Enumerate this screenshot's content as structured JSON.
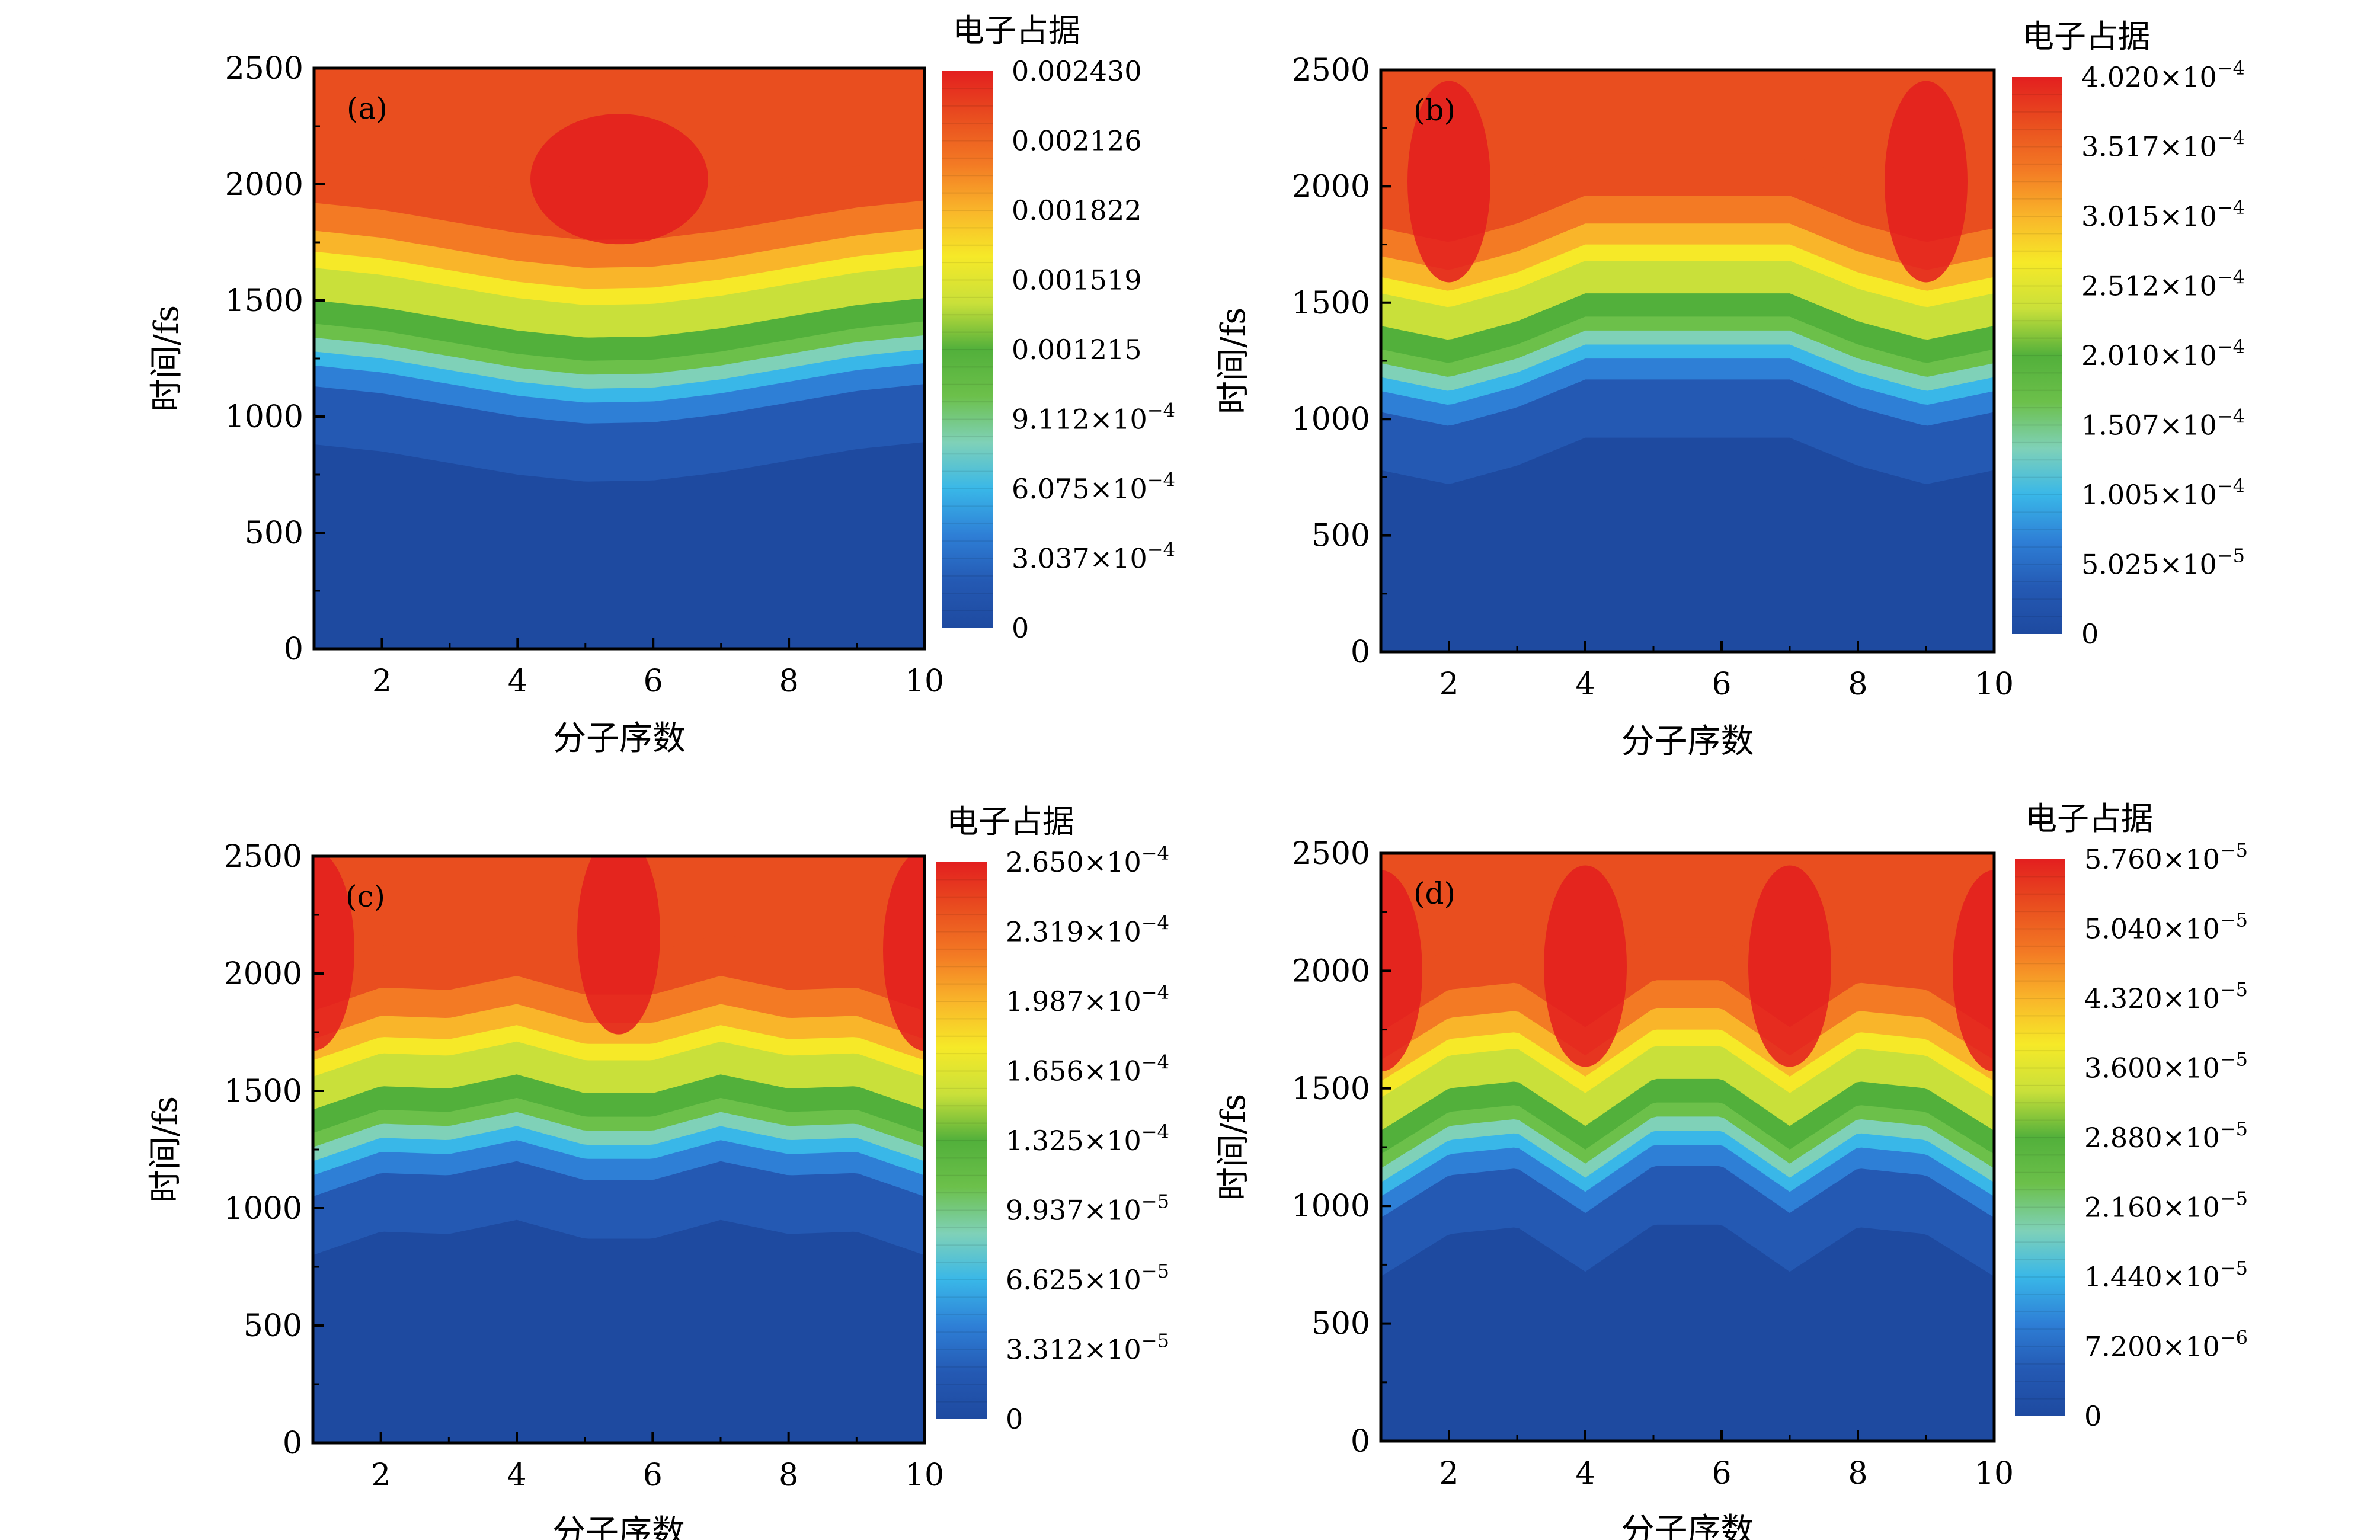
{
  "figure": {
    "description_free": true
  },
  "colors": {
    "stops": [
      "#1e4aa0",
      "#2459b3",
      "#2e7fd6",
      "#39b7e8",
      "#7fd1b8",
      "#6cc04a",
      "#52b03b",
      "#c9e03a",
      "#f6e928",
      "#f9b52a",
      "#f37a24",
      "#e94e1f",
      "#e31f1f"
    ]
  },
  "chart_data": [
    {
      "type": "heatmap",
      "panel_label": "(a)",
      "xlabel": "分子序数",
      "ylabel": "时间/fs",
      "xlim": [
        1,
        10
      ],
      "ylim": [
        0,
        2500
      ],
      "x_ticks": [
        "2",
        "4",
        "6",
        "8",
        "10"
      ],
      "y_ticks": [
        "0",
        "500",
        "1000",
        "1500",
        "2000",
        "2500"
      ],
      "colorbar_title": "电子占据",
      "colorbar_max": 0.00243,
      "colorbar_labels": [
        {
          "mant": "0.002430",
          "exp": ""
        },
        {
          "mant": "0.002126",
          "exp": ""
        },
        {
          "mant": "0.001822",
          "exp": ""
        },
        {
          "mant": "0.001519",
          "exp": ""
        },
        {
          "mant": "0.001215",
          "exp": ""
        },
        {
          "mant": "9.112×10",
          "exp": "−4"
        },
        {
          "mant": "6.075×10",
          "exp": "−4"
        },
        {
          "mant": "3.037×10",
          "exp": "−4"
        },
        {
          "mant": "0",
          "exp": ""
        }
      ],
      "front_time_fs": [
        1280,
        1250,
        1200,
        1150,
        1120,
        1125,
        1160,
        1210,
        1260,
        1290
      ],
      "peak_molecules": [
        5.5
      ]
    },
    {
      "type": "heatmap",
      "panel_label": "(b)",
      "xlabel": "分子序数",
      "ylabel": "时间/fs",
      "xlim": [
        1,
        10
      ],
      "ylim": [
        0,
        2500
      ],
      "x_ticks": [
        "2",
        "4",
        "6",
        "8",
        "10"
      ],
      "y_ticks": [
        "0",
        "500",
        "1000",
        "1500",
        "2000",
        "2500"
      ],
      "colorbar_title": "电子占据",
      "colorbar_max": 0.000402,
      "colorbar_labels": [
        {
          "mant": "4.020×10",
          "exp": "−4"
        },
        {
          "mant": "3.517×10",
          "exp": "−4"
        },
        {
          "mant": "3.015×10",
          "exp": "−4"
        },
        {
          "mant": "2.512×10",
          "exp": "−4"
        },
        {
          "mant": "2.010×10",
          "exp": "−4"
        },
        {
          "mant": "1.507×10",
          "exp": "−4"
        },
        {
          "mant": "1.005×10",
          "exp": "−4"
        },
        {
          "mant": "5.025×10",
          "exp": "−5"
        },
        {
          "mant": "0",
          "exp": ""
        }
      ],
      "front_time_fs": [
        1180,
        1120,
        1200,
        1320,
        1320,
        1320,
        1320,
        1200,
        1120,
        1180
      ],
      "peak_molecules": [
        2,
        9
      ]
    },
    {
      "type": "heatmap",
      "panel_label": "(c)",
      "xlabel": "分子序数",
      "ylabel": "时间/fs",
      "xlim": [
        1,
        10
      ],
      "ylim": [
        0,
        2500
      ],
      "x_ticks": [
        "2",
        "4",
        "6",
        "8",
        "10"
      ],
      "y_ticks": [
        "0",
        "500",
        "1000",
        "1500",
        "2000",
        "2500"
      ],
      "colorbar_title": "电子占据",
      "colorbar_max": 0.000265,
      "colorbar_labels": [
        {
          "mant": "2.650×10",
          "exp": "−4"
        },
        {
          "mant": "2.319×10",
          "exp": "−4"
        },
        {
          "mant": "1.987×10",
          "exp": "−4"
        },
        {
          "mant": "1.656×10",
          "exp": "−4"
        },
        {
          "mant": "1.325×10",
          "exp": "−4"
        },
        {
          "mant": "9.937×10",
          "exp": "−5"
        },
        {
          "mant": "6.625×10",
          "exp": "−5"
        },
        {
          "mant": "3.312×10",
          "exp": "−5"
        },
        {
          "mant": "0",
          "exp": ""
        }
      ],
      "front_time_fs": [
        1200,
        1300,
        1290,
        1350,
        1270,
        1270,
        1350,
        1290,
        1300,
        1200
      ],
      "peak_molecules": [
        1,
        5.5,
        10
      ]
    },
    {
      "type": "heatmap",
      "panel_label": "(d)",
      "xlabel": "分子序数",
      "ylabel": "时间/fs",
      "xlim": [
        1,
        10
      ],
      "ylim": [
        0,
        2500
      ],
      "x_ticks": [
        "2",
        "4",
        "6",
        "8",
        "10"
      ],
      "y_ticks": [
        "0",
        "500",
        "1000",
        "1500",
        "2000",
        "2500"
      ],
      "colorbar_title": "电子占据",
      "colorbar_max": 5.76e-05,
      "colorbar_labels": [
        {
          "mant": "5.760×10",
          "exp": "−5"
        },
        {
          "mant": "5.040×10",
          "exp": "−5"
        },
        {
          "mant": "4.320×10",
          "exp": "−5"
        },
        {
          "mant": "3.600×10",
          "exp": "−5"
        },
        {
          "mant": "2.880×10",
          "exp": "−5"
        },
        {
          "mant": "2.160×10",
          "exp": "−5"
        },
        {
          "mant": "1.440×10",
          "exp": "−5"
        },
        {
          "mant": "7.200×10",
          "exp": "−6"
        },
        {
          "mant": "0",
          "exp": ""
        }
      ],
      "front_time_fs": [
        1100,
        1280,
        1310,
        1120,
        1320,
        1320,
        1120,
        1310,
        1280,
        1100
      ],
      "peak_molecules": [
        1,
        4,
        7,
        10
      ]
    }
  ]
}
